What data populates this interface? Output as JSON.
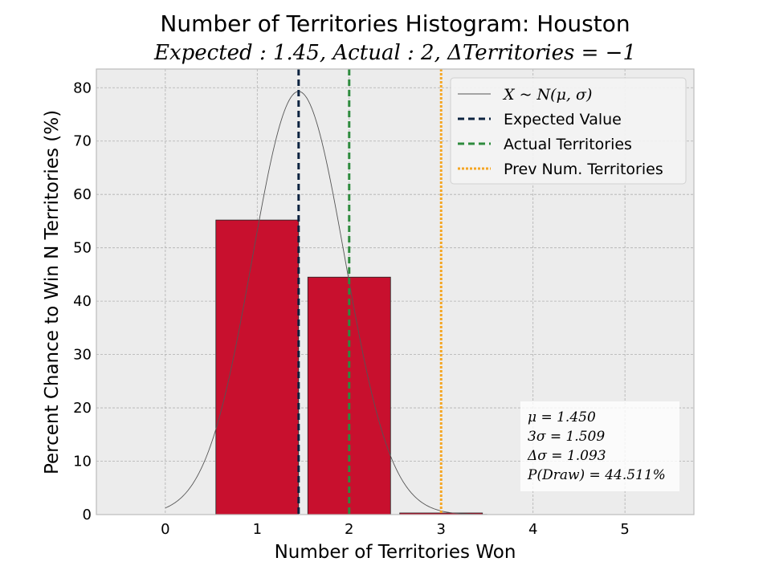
{
  "chart_data": {
    "type": "bar",
    "title": "Number of Territories Histogram: Houston",
    "subtitle": "Expected : 1.45, Actual : 2, ΔTerritories = −1",
    "xlabel": "Number of Territories Won",
    "ylabel": "Percent Chance to Win N Territories (%)",
    "xlim": [
      -0.75,
      5.75
    ],
    "ylim": [
      0,
      83.5
    ],
    "xticks": [
      0,
      1,
      2,
      3,
      4,
      5
    ],
    "yticks": [
      0,
      10,
      20,
      30,
      40,
      50,
      60,
      70,
      80
    ],
    "grid": true,
    "bars": {
      "x": [
        1,
        2,
        3
      ],
      "values": [
        55.2,
        44.5,
        0.3
      ],
      "width": 0.9,
      "color": "#c8102e"
    },
    "normal_curve": {
      "label": "X ~ N(μ, σ)",
      "mu": 1.45,
      "sigma": 0.503,
      "peak": 79.3,
      "x_range": [
        0,
        3.5
      ],
      "color": "#555555"
    },
    "vlines": [
      {
        "label": "Expected Value",
        "x": 1.45,
        "color": "#0c2340",
        "style": "dashed"
      },
      {
        "label": "Actual Territories",
        "x": 2,
        "color": "#2e8b3e",
        "style": "dashed"
      },
      {
        "label": "Prev Num. Territories",
        "x": 3,
        "color": "#f5a623",
        "style": "dotted"
      }
    ],
    "legend_position": "top-right",
    "stats_box": {
      "position": "bottom-right",
      "lines": [
        "μ = 1.450",
        "3σ = 1.509",
        "Δσ = 1.093",
        "P(Draw) = 44.511%"
      ]
    },
    "colors": {
      "plot_background": "#ececec",
      "grid": "#b0b0b0",
      "bar_edge": "#222222"
    }
  }
}
